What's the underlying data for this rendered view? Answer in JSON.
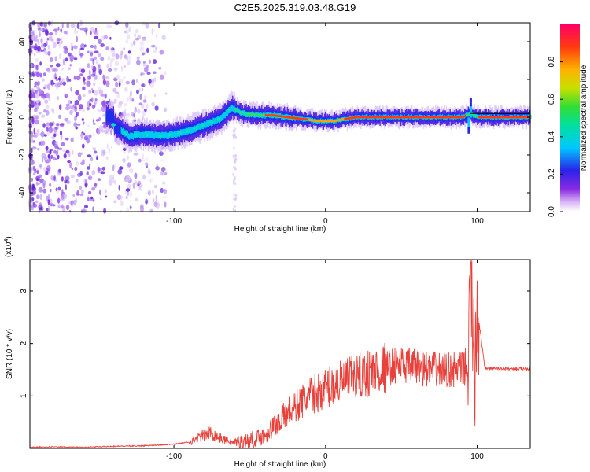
{
  "title": "C2E5.2025.319.03.48.G19",
  "chart_data": [
    {
      "type": "heatmap",
      "xlabel": "Height of straight line (km)",
      "ylabel": "Frequency (Hz)",
      "xlim": [
        -195,
        135
      ],
      "ylim": [
        -50,
        50
      ],
      "xticks": [
        -100,
        0,
        100
      ],
      "yticks": [
        -40,
        -20,
        0,
        20,
        40
      ],
      "colorbar": {
        "label": "Normalized spectral amplitude",
        "range": [
          0,
          1
        ],
        "ticks": [
          "0.0",
          "0.2",
          "0.4",
          "0.6",
          "0.8"
        ]
      },
      "ridge": {
        "x": [
          -140,
          -130,
          -120,
          -110,
          -100,
          -90,
          -80,
          -70,
          -62,
          -55,
          -45,
          -35,
          -25,
          -15,
          -5,
          5,
          20,
          40,
          60,
          80,
          90,
          95,
          100,
          135
        ],
        "y": [
          -4,
          -10,
          -9,
          -10,
          -9,
          -7,
          -4,
          -1,
          5,
          2,
          1,
          1,
          0,
          -1,
          -2,
          -2,
          0,
          0,
          0,
          0,
          0,
          2,
          0,
          0
        ]
      },
      "grid": false,
      "legend": "none"
    },
    {
      "type": "line",
      "xlabel": "Height of straight line (km)",
      "ylabel": "SNR (10 * v/v)",
      "y_multiplier": "(x10^4)",
      "xlim": [
        -195,
        135
      ],
      "ylim": [
        0,
        3.6
      ],
      "xticks": [
        -100,
        0,
        100
      ],
      "yticks": [
        1,
        2,
        3
      ],
      "color": "#e8403a",
      "series": [
        {
          "x": [
            -195,
            -180,
            -160,
            -140,
            -120,
            -100,
            -90,
            -80,
            -75,
            -70,
            -60,
            -50,
            -40,
            -35,
            -30,
            -20,
            -10,
            0,
            10,
            20,
            30,
            40,
            50,
            60,
            70,
            80,
            90,
            94,
            96,
            98,
            100,
            105,
            120,
            135
          ],
          "y": [
            0.02,
            0.03,
            0.02,
            0.04,
            0.05,
            0.08,
            0.12,
            0.25,
            0.3,
            0.2,
            0.1,
            0.15,
            0.25,
            0.4,
            0.55,
            0.8,
            1.0,
            1.15,
            1.25,
            1.35,
            1.45,
            1.55,
            1.6,
            1.55,
            1.5,
            1.5,
            1.5,
            1.6,
            3.5,
            1.2,
            2.7,
            1.53,
            1.52,
            1.52
          ]
        }
      ],
      "grid": false,
      "legend": "none"
    }
  ]
}
